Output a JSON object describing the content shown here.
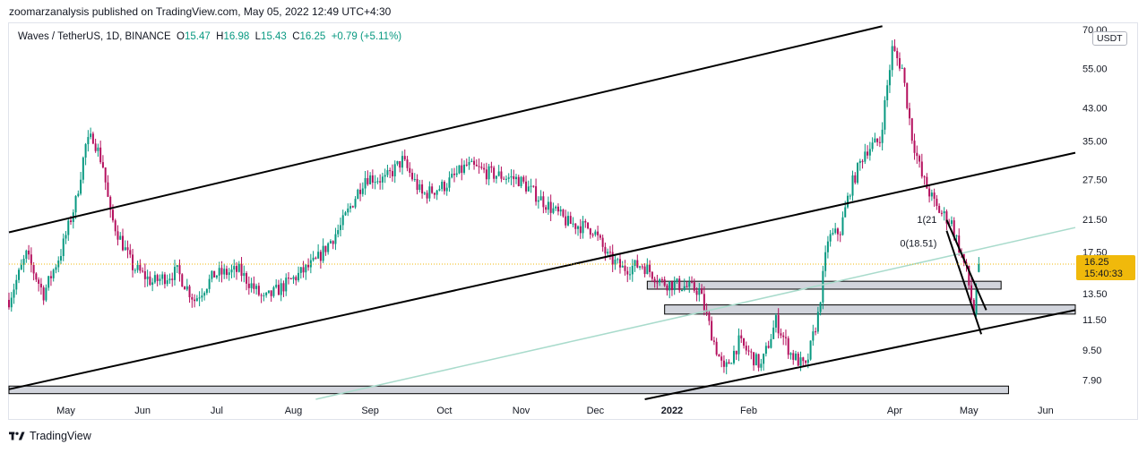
{
  "header": {
    "published": "zoomarzanalysis published on TradingView.com, May 05, 2022 12:49 UTC+4:30"
  },
  "legend": {
    "symbol": "Waves / TetherUS, 1D, BINANCE",
    "o_label": "O",
    "o": "15.47",
    "h_label": "H",
    "h": "16.98",
    "l_label": "L",
    "l": "15.43",
    "c_label": "C",
    "c": "16.25",
    "change": "+0.79 (+5.11%)"
  },
  "currency_button": "USDT",
  "footer": {
    "brand": "TradingView"
  },
  "colors": {
    "up": "#089981",
    "down": "#b5105e",
    "trendline": "#000000",
    "ray": "#a9dbcc",
    "price_tag": "#f0b90b",
    "dotted_line": "#f0b90b",
    "zone_fill": "#d1d4dc"
  },
  "chart_data": {
    "type": "candlestick",
    "title": "Waves / TetherUS, 1D, BINANCE",
    "yscale": "log",
    "ylim": [
      7.0,
      72.0
    ],
    "x_ticks": [
      "May",
      "Jun",
      "Jul",
      "Aug",
      "Sep",
      "Oct",
      "Nov",
      "Dec",
      "2022",
      "Feb",
      "Apr",
      "May",
      "Jun"
    ],
    "x_tick_dates": [
      "2021-05-01",
      "2021-06-01",
      "2021-07-01",
      "2021-08-01",
      "2021-09-01",
      "2021-10-01",
      "2021-11-01",
      "2021-12-01",
      "2022-01-01",
      "2022-02-01",
      "2022-04-01",
      "2022-05-01",
      "2022-06-01"
    ],
    "x_range": [
      "2021-04-08",
      "2022-06-13"
    ],
    "y_ticks": [
      "70.00",
      "55.00",
      "43.00",
      "35.00",
      "27.50",
      "21.50",
      "17.50",
      "13.50",
      "11.50",
      "9.50",
      "7.90"
    ],
    "y_tick_values": [
      70,
      55,
      43,
      35,
      27.5,
      21.5,
      17.5,
      13.5,
      11.5,
      9.5,
      7.9
    ],
    "current_price": {
      "value": "16.25",
      "countdown": "15:40:33"
    },
    "close_path": [
      [
        "2021-04-08",
        13.0
      ],
      [
        "2021-04-15",
        17.2
      ],
      [
        "2021-04-22",
        13.5
      ],
      [
        "2021-04-29",
        17.5
      ],
      [
        "2021-05-05",
        24.0
      ],
      [
        "2021-05-09",
        34.0
      ],
      [
        "2021-05-12",
        36.0
      ],
      [
        "2021-05-16",
        30.0
      ],
      [
        "2021-05-19",
        22.0
      ],
      [
        "2021-05-23",
        19.0
      ],
      [
        "2021-05-28",
        16.0
      ],
      [
        "2021-06-05",
        14.5
      ],
      [
        "2021-06-15",
        15.5
      ],
      [
        "2021-06-22",
        13.0
      ],
      [
        "2021-06-30",
        15.2
      ],
      [
        "2021-07-10",
        15.6
      ],
      [
        "2021-07-20",
        13.0
      ],
      [
        "2021-07-30",
        14.5
      ],
      [
        "2021-08-10",
        16.5
      ],
      [
        "2021-08-20",
        20.5
      ],
      [
        "2021-08-30",
        28.0
      ],
      [
        "2021-09-07",
        27.5
      ],
      [
        "2021-09-14",
        31.0
      ],
      [
        "2021-09-22",
        25.0
      ],
      [
        "2021-10-01",
        26.5
      ],
      [
        "2021-10-10",
        30.0
      ],
      [
        "2021-10-20",
        28.5
      ],
      [
        "2021-10-31",
        27.5
      ],
      [
        "2021-11-10",
        24.0
      ],
      [
        "2021-11-20",
        21.0
      ],
      [
        "2021-11-30",
        20.2
      ],
      [
        "2021-12-06",
        17.0
      ],
      [
        "2021-12-12",
        15.8
      ],
      [
        "2021-12-20",
        16.2
      ],
      [
        "2021-12-28",
        14.5
      ],
      [
        "2022-01-05",
        14.2
      ],
      [
        "2022-01-12",
        13.8
      ],
      [
        "2022-01-18",
        10.0
      ],
      [
        "2022-01-22",
        8.3
      ],
      [
        "2022-01-28",
        10.0
      ],
      [
        "2022-02-06",
        8.6
      ],
      [
        "2022-02-12",
        11.4
      ],
      [
        "2022-02-18",
        9.3
      ],
      [
        "2022-02-24",
        8.5
      ],
      [
        "2022-03-01",
        11.8
      ],
      [
        "2022-03-05",
        19.0
      ],
      [
        "2022-03-10",
        20.0
      ],
      [
        "2022-03-14",
        26.0
      ],
      [
        "2022-03-20",
        33.0
      ],
      [
        "2022-03-26",
        35.0
      ],
      [
        "2022-03-31",
        62.0
      ],
      [
        "2022-04-04",
        55.0
      ],
      [
        "2022-04-08",
        36.0
      ],
      [
        "2022-04-12",
        28.0
      ],
      [
        "2022-04-18",
        23.0
      ],
      [
        "2022-04-24",
        21.0
      ],
      [
        "2022-04-30",
        15.5
      ],
      [
        "2022-05-03",
        12.0
      ],
      [
        "2022-05-05",
        16.25
      ]
    ],
    "annotations": [
      {
        "label": "1(21",
        "date": "2022-04-18",
        "price": 21.5
      },
      {
        "label": "0(18.51)",
        "date": "2022-04-18",
        "price": 18.5
      }
    ],
    "trendlines": [
      {
        "from": [
          "2021-04-08",
          19.8
        ],
        "to": [
          "2022-03-27",
          71.5
        ]
      },
      {
        "from": [
          "2021-04-08",
          7.45
        ],
        "to": [
          "2022-06-13",
          32.5
        ]
      },
      {
        "from": [
          "2021-12-21",
          7.0
        ],
        "to": [
          "2022-06-13",
          12.2
        ]
      },
      {
        "from": [
          "2022-04-22",
          21.4
        ],
        "to": [
          "2022-05-08",
          12.2
        ]
      },
      {
        "from": [
          "2022-04-22",
          20.0
        ],
        "to": [
          "2022-05-06",
          10.5
        ]
      }
    ],
    "rays": [
      {
        "from": [
          "2021-08-10",
          7.0
        ],
        "to": [
          "2022-06-13",
          20.4
        ]
      }
    ],
    "zones": [
      {
        "from": "2021-04-08",
        "to": "2022-05-17",
        "top": 7.6,
        "bottom": 7.25
      },
      {
        "from": "2021-12-22",
        "to": "2022-05-14",
        "top": 14.6,
        "bottom": 13.9
      },
      {
        "from": "2021-12-29",
        "to": "2022-06-13",
        "top": 12.6,
        "bottom": 11.9
      }
    ]
  }
}
